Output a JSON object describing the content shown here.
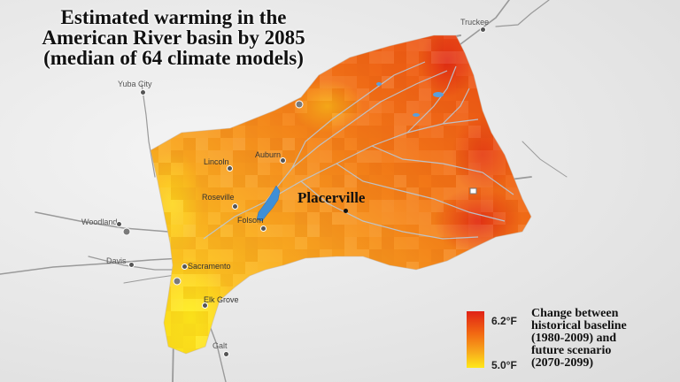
{
  "title": {
    "line1": "Estimated warming in the",
    "line2": "American River basin by 2085",
    "line3": "(median of 64 climate models)"
  },
  "cities": {
    "truckee": "Truckee",
    "yuba_city": "Yuba City",
    "lincoln": "Lincoln",
    "auburn": "Auburn",
    "roseville": "Roseville",
    "folsom": "Folsom",
    "woodland": "Woodland",
    "davis": "Davis",
    "sacramento": "Sacramento",
    "elk_grove": "Elk Grove",
    "galt": "Galt",
    "placerville": "Placerville"
  },
  "legend": {
    "max_label": "6.2°F",
    "min_label": "5.0°F",
    "max_value": 6.2,
    "min_value": 5.0,
    "colors": [
      "#e02216",
      "#f26a12",
      "#f7a51b",
      "#ffe81a"
    ],
    "line1": "Change between",
    "line2": "historical baseline",
    "line3": "(1980-2009) and",
    "line4": "future scenario",
    "line5": "(2070-2099)"
  },
  "colors": {
    "hot": "#e8321a",
    "warm": "#f47a18",
    "mid": "#f9a51f",
    "cool": "#ffe31c",
    "water": "#3f8fd6",
    "road": "#8a8a8a"
  }
}
